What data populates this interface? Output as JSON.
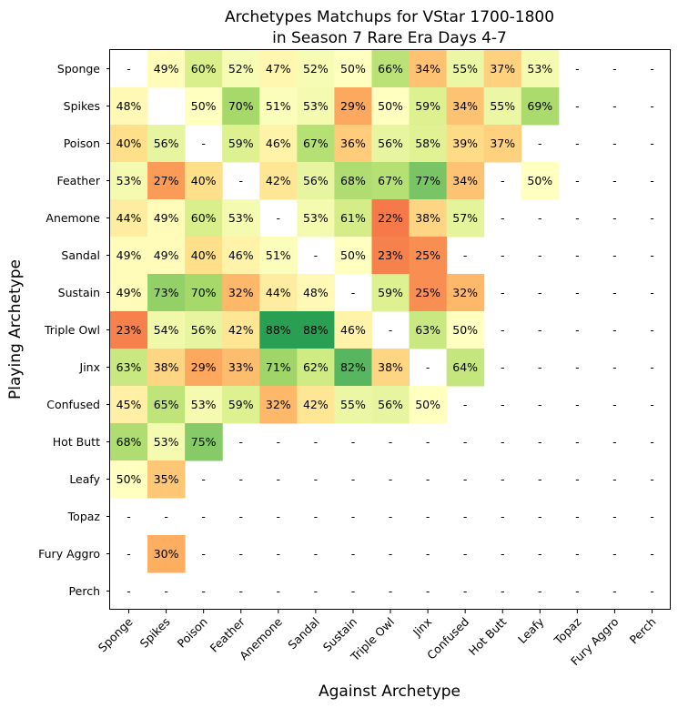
{
  "chart_data": {
    "type": "heatmap",
    "title": [
      "Archetypes Matchups for VStar 1700-1800",
      "in Season 7 Rare Era Days 4-7"
    ],
    "xlabel": "Against Archetype",
    "ylabel": "Playing Archetype",
    "rows": [
      "Sponge",
      "Spikes",
      "Poison",
      "Feather",
      "Anemone",
      "Sandal",
      "Sustain",
      "Triple Owl",
      "Jinx",
      "Confused",
      "Hot Butt",
      "Leafy",
      "Topaz",
      "Fury Aggro",
      "Perch"
    ],
    "cols": [
      "Sponge",
      "Spikes",
      "Poison",
      "Feather",
      "Anemone",
      "Sandal",
      "Sustain",
      "Triple Owl",
      "Jinx",
      "Confused",
      "Hot Butt",
      "Leafy",
      "Topaz",
      "Fury Aggro",
      "Perch"
    ],
    "missing_label": "-",
    "value_suffix": "%",
    "color_scale": "RdYlGn",
    "color_range": [
      0,
      100
    ],
    "values": [
      [
        null,
        49,
        60,
        52,
        47,
        52,
        50,
        66,
        34,
        55,
        37,
        53,
        null,
        null,
        null
      ],
      [
        48,
        "blank",
        50,
        70,
        51,
        53,
        29,
        50,
        59,
        34,
        55,
        69,
        null,
        null,
        null
      ],
      [
        40,
        56,
        null,
        59,
        46,
        67,
        36,
        56,
        58,
        39,
        37,
        null,
        null,
        null,
        null
      ],
      [
        53,
        27,
        40,
        null,
        42,
        56,
        68,
        67,
        77,
        34,
        null,
        50,
        null,
        null,
        null
      ],
      [
        44,
        49,
        60,
        53,
        null,
        53,
        61,
        22,
        38,
        57,
        null,
        null,
        null,
        null,
        null
      ],
      [
        49,
        49,
        40,
        46,
        51,
        null,
        50,
        23,
        25,
        null,
        null,
        null,
        null,
        null,
        null
      ],
      [
        49,
        73,
        70,
        32,
        44,
        48,
        null,
        59,
        25,
        32,
        null,
        null,
        null,
        null,
        null
      ],
      [
        23,
        54,
        56,
        42,
        88,
        88,
        46,
        null,
        63,
        50,
        null,
        null,
        null,
        null,
        null
      ],
      [
        63,
        38,
        29,
        33,
        71,
        62,
        82,
        38,
        null,
        64,
        null,
        null,
        null,
        null,
        null
      ],
      [
        45,
        65,
        53,
        59,
        32,
        42,
        55,
        56,
        50,
        null,
        null,
        null,
        null,
        null,
        null
      ],
      [
        68,
        53,
        75,
        null,
        null,
        null,
        null,
        null,
        null,
        null,
        null,
        null,
        null,
        null,
        null
      ],
      [
        50,
        35,
        null,
        null,
        null,
        null,
        null,
        null,
        null,
        null,
        null,
        null,
        null,
        null,
        null
      ],
      [
        null,
        null,
        null,
        null,
        null,
        null,
        null,
        null,
        null,
        null,
        null,
        null,
        null,
        null,
        null
      ],
      [
        null,
        30,
        null,
        null,
        null,
        null,
        null,
        null,
        null,
        null,
        null,
        null,
        null,
        null,
        null
      ],
      [
        null,
        null,
        null,
        null,
        null,
        null,
        null,
        null,
        null,
        null,
        null,
        null,
        null,
        null,
        null
      ]
    ]
  }
}
